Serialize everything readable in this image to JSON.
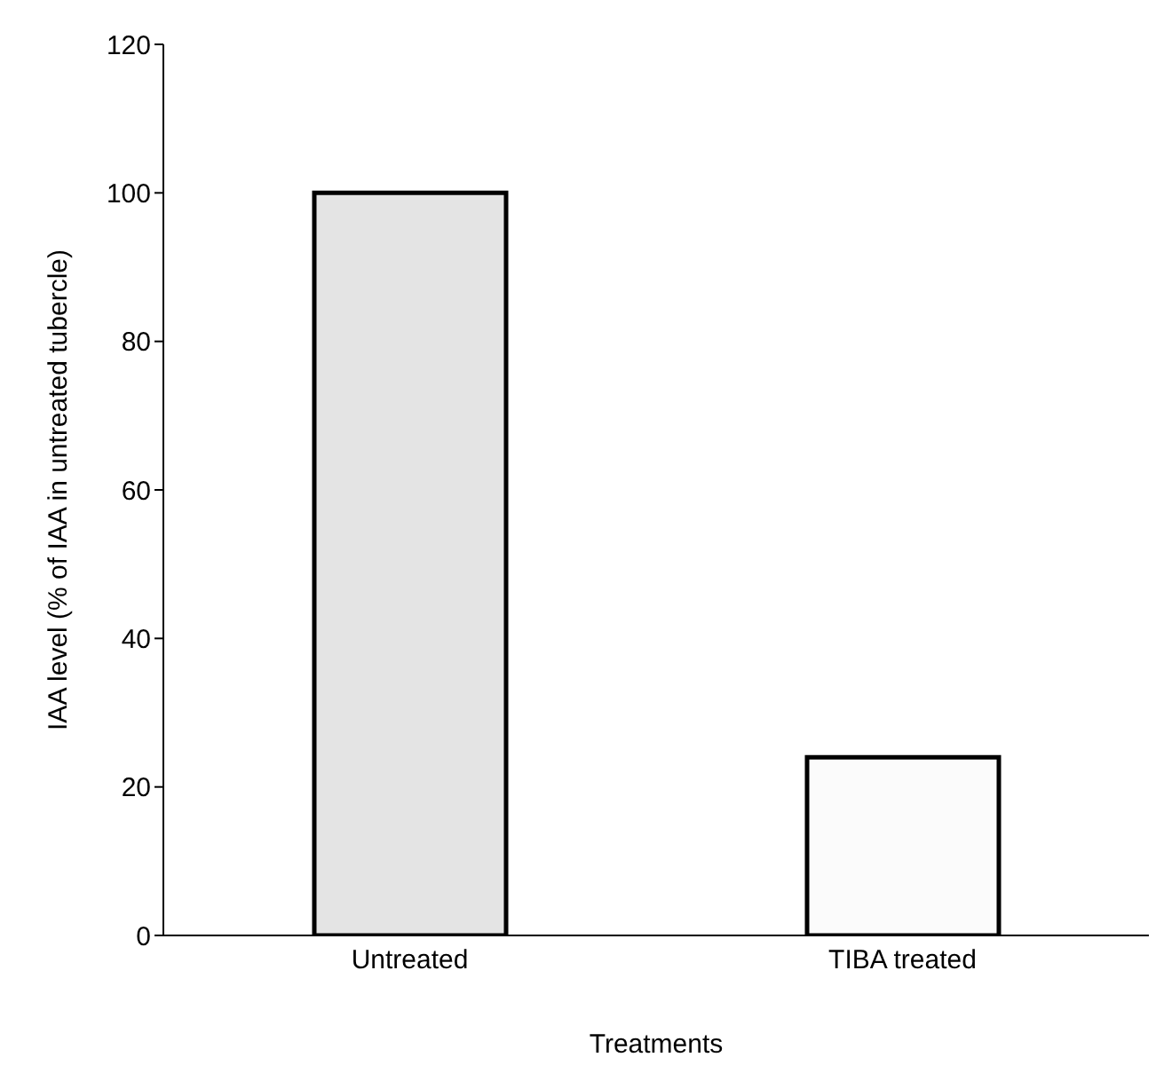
{
  "chart_data": {
    "type": "bar",
    "xlabel": "Treatments",
    "ylabel": "IAA level (% of IAA in untreated tubercle)",
    "categories": [
      "Untreated",
      "TIBA treated"
    ],
    "values": [
      100,
      24
    ],
    "colors": [
      "#e4e4e4",
      "#fbfbfb"
    ],
    "ylim": [
      0,
      120
    ],
    "yticks": [
      0,
      20,
      40,
      60,
      80,
      100,
      120
    ],
    "grid": false
  }
}
